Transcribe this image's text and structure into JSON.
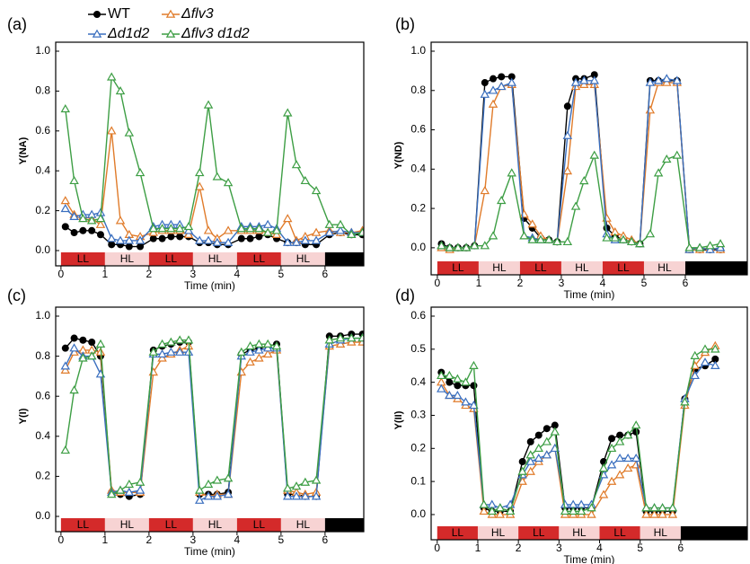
{
  "chart_data": [
    {
      "type": "line",
      "panel_label": "(a)",
      "y_label": "Y(NA)",
      "x_label": "Time (min)",
      "x": [
        0.1,
        0.3,
        0.5,
        0.7,
        0.9,
        1.15,
        1.35,
        1.55,
        1.8,
        2.1,
        2.3,
        2.5,
        2.7,
        2.9,
        3.15,
        3.35,
        3.55,
        3.8,
        4.1,
        4.3,
        4.5,
        4.7,
        4.9,
        5.15,
        5.35,
        5.55,
        5.8,
        6.1,
        6.35,
        6.6,
        6.85
      ],
      "xlim": [
        -0.12,
        6.88
      ],
      "xticks": [
        0,
        1,
        2,
        3,
        4,
        5,
        6
      ],
      "ylim": [
        0,
        1
      ],
      "yticks": [
        {
          "value": 0,
          "label": "0.0"
        },
        0.2,
        0.4,
        0.6,
        0.8,
        {
          "value": 1,
          "label": "1.0"
        }
      ],
      "light_segments": [
        {
          "label": "LL",
          "start": 0,
          "end": 1,
          "color": "#d42a2a"
        },
        {
          "label": "HL",
          "start": 1,
          "end": 2,
          "color": "#f7d3d3"
        },
        {
          "label": "LL",
          "start": 2,
          "end": 3,
          "color": "#d42a2a"
        },
        {
          "label": "HL",
          "start": 3,
          "end": 4,
          "color": "#f7d3d3"
        },
        {
          "label": "LL",
          "start": 4,
          "end": 5,
          "color": "#d42a2a"
        },
        {
          "label": "HL",
          "start": 5,
          "end": 6,
          "color": "#f7d3d3"
        },
        {
          "start": 6,
          "end": 7,
          "color": "#000000"
        }
      ],
      "series": [
        {
          "name": "WT",
          "color": "#000000",
          "values": [
            0.12,
            0.09,
            0.1,
            0.1,
            0.08,
            0.03,
            0.03,
            0.02,
            0.02,
            0.06,
            0.06,
            0.07,
            0.07,
            0.07,
            0.04,
            0.04,
            0.03,
            0.03,
            0.06,
            0.06,
            0.07,
            0.08,
            0.06,
            0.04,
            0.04,
            0.03,
            0.03,
            0.08,
            0.09,
            0.08,
            0.08
          ]
        },
        {
          "name": "Δflv3",
          "color": "#e07b2a",
          "values": [
            0.25,
            0.18,
            0.17,
            0.16,
            0.13,
            0.6,
            0.15,
            0.08,
            0.07,
            0.09,
            0.1,
            0.1,
            0.1,
            0.08,
            0.32,
            0.1,
            0.06,
            0.1,
            0.1,
            0.1,
            0.1,
            0.09,
            0.08,
            0.16,
            0.05,
            0.07,
            0.09,
            0.1,
            0.09,
            0.09,
            0.1
          ]
        },
        {
          "name": "Δd1d2",
          "color": "#3a6fbf",
          "values": [
            0.21,
            0.17,
            0.18,
            0.18,
            0.19,
            0.06,
            0.05,
            0.05,
            0.05,
            0.12,
            0.13,
            0.13,
            0.13,
            0.1,
            0.05,
            0.05,
            0.04,
            0.04,
            0.12,
            0.12,
            0.12,
            0.13,
            0.11,
            0.04,
            0.04,
            0.05,
            0.05,
            0.09,
            0.1,
            0.09,
            0.09
          ]
        },
        {
          "name": "Δflv3 d1d2",
          "color": "#3d9e44",
          "values": [
            0.71,
            0.35,
            0.16,
            0.15,
            0.16,
            0.87,
            0.8,
            0.59,
            0.39,
            0.11,
            0.11,
            0.11,
            0.11,
            0.12,
            0.39,
            0.73,
            0.37,
            0.34,
            0.11,
            0.11,
            0.11,
            0.09,
            0.1,
            0.69,
            0.43,
            0.35,
            0.3,
            0.13,
            0.13,
            0.08,
            0.09
          ]
        }
      ]
    },
    {
      "type": "line",
      "panel_label": "(b)",
      "y_label": "Y(ND)",
      "x_label": "Time (min)",
      "x": [
        0.1,
        0.3,
        0.5,
        0.7,
        0.9,
        1.15,
        1.35,
        1.55,
        1.8,
        2.1,
        2.3,
        2.5,
        2.7,
        2.9,
        3.15,
        3.35,
        3.55,
        3.8,
        4.1,
        4.3,
        4.5,
        4.7,
        4.9,
        5.15,
        5.35,
        5.55,
        5.8,
        6.1,
        6.35,
        6.6,
        6.85
      ],
      "xlim": [
        -0.15,
        7.5
      ],
      "xticks": [
        0,
        1,
        2,
        3,
        4,
        5,
        6
      ],
      "ylim": [
        -0.06,
        1
      ],
      "yticks": [
        {
          "value": 0,
          "label": "0.0"
        },
        0.2,
        0.4,
        0.6,
        0.8,
        {
          "value": 1,
          "label": "1.0"
        }
      ],
      "light_segments": [
        {
          "label": "LL",
          "start": 0,
          "end": 1,
          "color": "#d42a2a"
        },
        {
          "label": "HL",
          "start": 1,
          "end": 2,
          "color": "#f7d3d3"
        },
        {
          "label": "LL",
          "start": 2,
          "end": 3,
          "color": "#d42a2a"
        },
        {
          "label": "HL",
          "start": 3,
          "end": 4,
          "color": "#f7d3d3"
        },
        {
          "label": "LL",
          "start": 4,
          "end": 5,
          "color": "#d42a2a"
        },
        {
          "label": "HL",
          "start": 5,
          "end": 6,
          "color": "#f7d3d3"
        },
        {
          "start": 6,
          "end": 7.5,
          "color": "#000000"
        }
      ],
      "series": [
        {
          "name": "WT",
          "color": "#000000",
          "values": [
            0.02,
            0.0,
            0.0,
            0.0,
            0.01,
            0.84,
            0.86,
            0.87,
            0.87,
            0.15,
            0.1,
            0.05,
            0.04,
            0.03,
            0.72,
            0.86,
            0.86,
            0.88,
            0.1,
            0.06,
            0.04,
            0.03,
            0.02,
            0.85,
            0.85,
            0.85,
            0.85,
            -0.01,
            -0.01,
            -0.01,
            -0.01
          ]
        },
        {
          "name": "Δflv3",
          "color": "#e07b2a",
          "values": [
            0.0,
            -0.01,
            0.0,
            0.0,
            0.01,
            0.29,
            0.73,
            0.82,
            0.83,
            0.17,
            0.12,
            0.06,
            0.04,
            0.03,
            0.39,
            0.82,
            0.83,
            0.83,
            0.15,
            0.08,
            0.06,
            0.04,
            0.02,
            0.7,
            0.84,
            0.84,
            0.84,
            -0.01,
            -0.01,
            0.0,
            -0.01
          ]
        },
        {
          "name": "Δd1d2",
          "color": "#3a6fbf",
          "values": [
            0.01,
            0.0,
            0.0,
            0.0,
            0.01,
            0.78,
            0.8,
            0.82,
            0.84,
            0.06,
            0.05,
            0.04,
            0.04,
            0.03,
            0.57,
            0.84,
            0.85,
            0.85,
            0.07,
            0.04,
            0.04,
            0.03,
            0.02,
            0.84,
            0.85,
            0.86,
            0.85,
            -0.01,
            0.0,
            -0.01,
            0.0
          ]
        },
        {
          "name": "Δflv3 d1d2",
          "color": "#3d9e44",
          "values": [
            0.01,
            0.0,
            0.0,
            0.0,
            0.01,
            0.01,
            0.06,
            0.24,
            0.38,
            0.06,
            0.04,
            0.04,
            0.04,
            0.03,
            0.03,
            0.21,
            0.34,
            0.47,
            0.05,
            0.05,
            0.04,
            0.03,
            0.02,
            0.07,
            0.38,
            0.45,
            0.47,
            0.0,
            0.0,
            0.01,
            0.02
          ]
        }
      ]
    },
    {
      "type": "line",
      "panel_label": "(c)",
      "y_label": "Y(I)",
      "x_label": "Time (min)",
      "x": [
        0.1,
        0.3,
        0.5,
        0.7,
        0.9,
        1.15,
        1.35,
        1.55,
        1.8,
        2.1,
        2.3,
        2.5,
        2.7,
        2.9,
        3.15,
        3.35,
        3.55,
        3.8,
        4.1,
        4.3,
        4.5,
        4.7,
        4.9,
        5.15,
        5.35,
        5.55,
        5.8,
        6.1,
        6.35,
        6.6,
        6.85
      ],
      "xlim": [
        -0.12,
        6.88
      ],
      "xticks": [
        0,
        1,
        2,
        3,
        4,
        5,
        6
      ],
      "ylim": [
        0,
        1
      ],
      "yticks": [
        {
          "value": 0,
          "label": "0.0"
        },
        0.2,
        0.4,
        0.6,
        0.8,
        {
          "value": 1,
          "label": "1.0"
        }
      ],
      "light_segments": [
        {
          "label": "LL",
          "start": 0,
          "end": 1,
          "color": "#d42a2a"
        },
        {
          "label": "HL",
          "start": 1,
          "end": 2,
          "color": "#f7d3d3"
        },
        {
          "label": "LL",
          "start": 2,
          "end": 3,
          "color": "#d42a2a"
        },
        {
          "label": "HL",
          "start": 3,
          "end": 4,
          "color": "#f7d3d3"
        },
        {
          "label": "LL",
          "start": 4,
          "end": 5,
          "color": "#d42a2a"
        },
        {
          "label": "HL",
          "start": 5,
          "end": 6,
          "color": "#f7d3d3"
        },
        {
          "start": 6,
          "end": 7,
          "color": "#000000"
        }
      ],
      "series": [
        {
          "name": "WT",
          "color": "#000000",
          "values": [
            0.84,
            0.89,
            0.88,
            0.87,
            0.8,
            0.12,
            0.11,
            0.1,
            0.11,
            0.83,
            0.85,
            0.86,
            0.87,
            0.87,
            0.11,
            0.11,
            0.11,
            0.12,
            0.81,
            0.83,
            0.84,
            0.85,
            0.86,
            0.11,
            0.11,
            0.1,
            0.1,
            0.9,
            0.9,
            0.91,
            0.91
          ]
        },
        {
          "name": "Δflv3",
          "color": "#e07b2a",
          "values": [
            0.73,
            0.82,
            0.83,
            0.83,
            0.82,
            0.13,
            0.12,
            0.12,
            0.12,
            0.72,
            0.79,
            0.81,
            0.83,
            0.85,
            0.12,
            0.1,
            0.11,
            0.11,
            0.72,
            0.77,
            0.79,
            0.81,
            0.83,
            0.13,
            0.12,
            0.11,
            0.12,
            0.85,
            0.86,
            0.87,
            0.87
          ]
        },
        {
          "name": "Δd1d2",
          "color": "#3a6fbf",
          "values": [
            0.75,
            0.84,
            0.8,
            0.8,
            0.71,
            0.12,
            0.13,
            0.12,
            0.13,
            0.81,
            0.81,
            0.82,
            0.82,
            0.82,
            0.08,
            0.1,
            0.1,
            0.11,
            0.8,
            0.82,
            0.83,
            0.84,
            0.84,
            0.1,
            0.1,
            0.1,
            0.1,
            0.86,
            0.88,
            0.89,
            0.89
          ]
        },
        {
          "name": "Δflv3 d1d2",
          "color": "#3d9e44",
          "values": [
            0.33,
            0.63,
            0.79,
            0.8,
            0.86,
            0.11,
            0.13,
            0.16,
            0.17,
            0.82,
            0.86,
            0.87,
            0.88,
            0.88,
            0.13,
            0.16,
            0.18,
            0.19,
            0.82,
            0.85,
            0.86,
            0.86,
            0.85,
            0.14,
            0.15,
            0.17,
            0.18,
            0.88,
            0.89,
            0.89,
            0.89
          ]
        }
      ]
    },
    {
      "type": "line",
      "panel_label": "(d)",
      "y_label": "Y(II)",
      "x_label": "Time (min)",
      "x": [
        0.1,
        0.3,
        0.5,
        0.7,
        0.9,
        1.15,
        1.35,
        1.55,
        1.8,
        2.1,
        2.3,
        2.5,
        2.7,
        2.9,
        3.15,
        3.35,
        3.55,
        3.8,
        4.1,
        4.3,
        4.5,
        4.7,
        4.9,
        5.15,
        5.35,
        5.55,
        5.8,
        6.1,
        6.35,
        6.6,
        6.85
      ],
      "xlim": [
        -0.15,
        7.64
      ],
      "xticks": [
        0,
        1,
        2,
        3,
        4,
        5,
        6
      ],
      "ylim": [
        -0.03,
        0.6
      ],
      "yticks": [
        {
          "value": 0,
          "label": "0.0"
        },
        0.1,
        0.2,
        0.3,
        0.4,
        0.5,
        0.6
      ],
      "light_segments": [
        {
          "label": "LL",
          "start": 0,
          "end": 1,
          "color": "#d42a2a"
        },
        {
          "label": "HL",
          "start": 1,
          "end": 2,
          "color": "#f7d3d3"
        },
        {
          "label": "LL",
          "start": 2,
          "end": 3,
          "color": "#d42a2a"
        },
        {
          "label": "HL",
          "start": 3,
          "end": 4,
          "color": "#f7d3d3"
        },
        {
          "label": "LL",
          "start": 4,
          "end": 5,
          "color": "#d42a2a"
        },
        {
          "label": "HL",
          "start": 5,
          "end": 6,
          "color": "#f7d3d3"
        },
        {
          "start": 6,
          "end": 7.64,
          "color": "#000000"
        }
      ],
      "series": [
        {
          "name": "WT",
          "color": "#000000",
          "values": [
            0.43,
            0.4,
            0.39,
            0.39,
            0.39,
            0.02,
            0.01,
            0.01,
            0.01,
            0.16,
            0.22,
            0.24,
            0.26,
            0.27,
            0.02,
            0.02,
            0.02,
            0.02,
            0.16,
            0.23,
            0.24,
            0.24,
            0.25,
            0.01,
            0.01,
            0.01,
            0.01,
            0.35,
            0.44,
            0.45,
            0.47
          ]
        },
        {
          "name": "Δflv3",
          "color": "#e07b2a",
          "values": [
            0.4,
            0.36,
            0.35,
            0.33,
            0.32,
            0.01,
            0.0,
            0.0,
            0.0,
            0.1,
            0.13,
            0.16,
            0.18,
            0.2,
            0.0,
            0.0,
            0.0,
            0.0,
            0.06,
            0.1,
            0.12,
            0.14,
            0.15,
            0.0,
            0.0,
            0.0,
            0.0,
            0.33,
            0.45,
            0.49,
            0.51
          ]
        },
        {
          "name": "Δd1d2",
          "color": "#3a6fbf",
          "values": [
            0.38,
            0.36,
            0.36,
            0.34,
            0.33,
            0.03,
            0.03,
            0.02,
            0.03,
            0.12,
            0.16,
            0.17,
            0.18,
            0.2,
            0.03,
            0.03,
            0.03,
            0.03,
            0.12,
            0.15,
            0.17,
            0.17,
            0.17,
            0.02,
            0.02,
            0.02,
            0.02,
            0.35,
            0.42,
            0.46,
            0.45
          ]
        },
        {
          "name": "Δflv3 d1d2",
          "color": "#3d9e44",
          "values": [
            0.42,
            0.42,
            0.41,
            0.4,
            0.45,
            0.03,
            0.01,
            0.02,
            0.01,
            0.13,
            0.18,
            0.2,
            0.22,
            0.25,
            0.01,
            0.01,
            0.01,
            0.02,
            0.14,
            0.2,
            0.22,
            0.24,
            0.27,
            0.02,
            0.02,
            0.02,
            0.02,
            0.34,
            0.48,
            0.5,
            0.5
          ]
        }
      ]
    }
  ]
}
